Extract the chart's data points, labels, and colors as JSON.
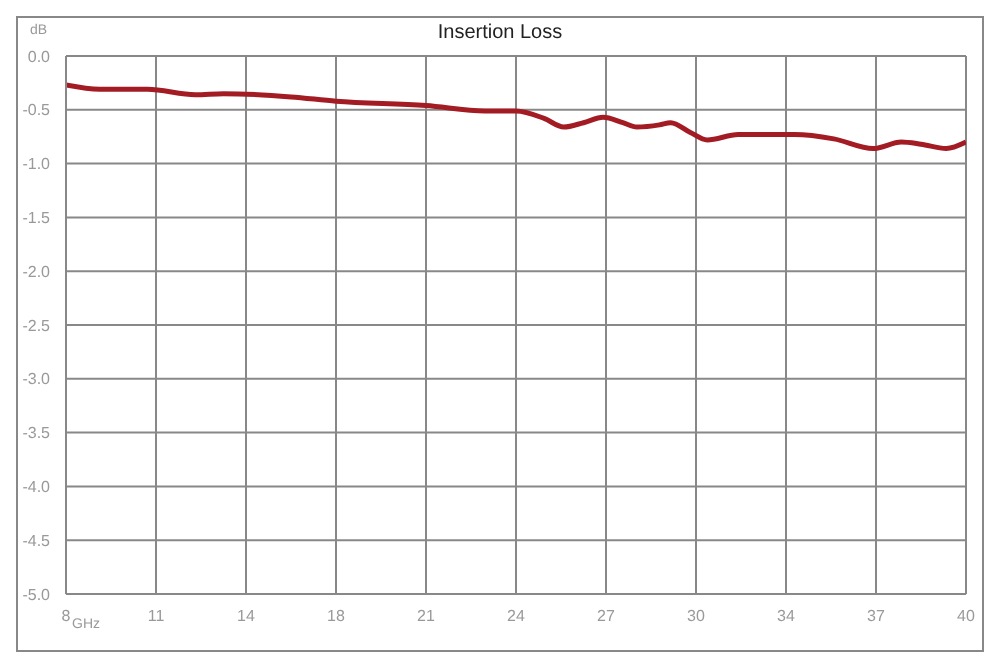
{
  "chart_data": {
    "type": "line",
    "title": "Insertion Loss",
    "xlabel": "GHz",
    "ylabel": "dB",
    "xlim": [
      8,
      40
    ],
    "xticks": [
      {
        "value": 8,
        "label": "8"
      },
      {
        "value": 11.2,
        "label": "11"
      },
      {
        "value": 14.4,
        "label": "14"
      },
      {
        "value": 17.6,
        "label": "18"
      },
      {
        "value": 20.8,
        "label": "21"
      },
      {
        "value": 24,
        "label": "24"
      },
      {
        "value": 27.2,
        "label": "27"
      },
      {
        "value": 30.4,
        "label": "30"
      },
      {
        "value": 33.6,
        "label": "34"
      },
      {
        "value": 36.8,
        "label": "37"
      },
      {
        "value": 40,
        "label": "40"
      }
    ],
    "ylim": [
      -5,
      0
    ],
    "yticks": [
      {
        "value": 0,
        "label": "0.0"
      },
      {
        "value": -0.5,
        "label": "-0.5"
      },
      {
        "value": -1,
        "label": "-1.0"
      },
      {
        "value": -1.5,
        "label": "-1.5"
      },
      {
        "value": -2,
        "label": "-2.0"
      },
      {
        "value": -2.5,
        "label": "-2.5"
      },
      {
        "value": -3,
        "label": "-3.0"
      },
      {
        "value": -3.5,
        "label": "-3.5"
      },
      {
        "value": -4,
        "label": "-4.0"
      },
      {
        "value": -4.5,
        "label": "-4.5"
      },
      {
        "value": -5,
        "label": "-5.0"
      }
    ],
    "x": [
      8,
      9.2,
      10.9,
      12.6,
      13.6,
      16,
      17.6,
      20.8,
      22.9,
      24,
      25,
      25.7,
      26.4,
      27.1,
      27.8,
      28.3,
      29.1,
      29.5,
      30.2,
      30.8,
      31.9,
      33.9,
      35.3,
      36.7,
      37.7,
      38.4,
      39.3,
      40
    ],
    "series": [
      {
        "color": "#a31c24",
        "values": [
          -0.27,
          -0.31,
          -0.31,
          -0.36,
          -0.35,
          -0.38,
          -0.42,
          -0.46,
          -0.51,
          -0.51,
          -0.58,
          -0.66,
          -0.62,
          -0.57,
          -0.62,
          -0.66,
          -0.64,
          -0.62,
          -0.71,
          -0.78,
          -0.73,
          -0.73,
          -0.77,
          -0.86,
          -0.8,
          -0.82,
          -0.86,
          -0.8
        ]
      }
    ],
    "grid": true,
    "legend": false,
    "marker": "none",
    "line_style": "solid"
  }
}
